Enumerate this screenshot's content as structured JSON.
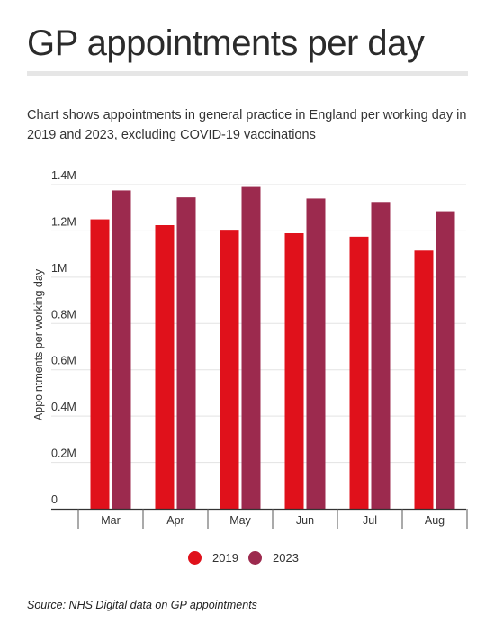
{
  "header": {
    "title": "GP appointments per day",
    "subtitle": "Chart shows appointments in general practice in England per working day in 2019 and 2023, excluding COVID-19 vaccinations"
  },
  "footer": {
    "source": "Source: NHS Digital data on GP appointments"
  },
  "colors": {
    "2019": "#e0111b",
    "2023": "#9c2a4e",
    "grid": "#e3e3e3",
    "axis": "#333333"
  },
  "chart_data": {
    "type": "bar",
    "categories": [
      "Mar",
      "Apr",
      "May",
      "Jun",
      "Jul",
      "Aug"
    ],
    "series": [
      {
        "name": "2019",
        "values": [
          1250000,
          1225000,
          1205000,
          1190000,
          1175000,
          1115000
        ]
      },
      {
        "name": "2023",
        "values": [
          1375000,
          1345000,
          1390000,
          1340000,
          1325000,
          1285000
        ]
      }
    ],
    "ylabel": "Appointments per working day",
    "xlabel": "",
    "ylim": [
      0,
      1400000
    ],
    "yticks": [
      {
        "value": 0,
        "label": "0"
      },
      {
        "value": 200000,
        "label": "0.2M"
      },
      {
        "value": 400000,
        "label": "0.4M"
      },
      {
        "value": 600000,
        "label": "0.6M"
      },
      {
        "value": 800000,
        "label": "0.8M"
      },
      {
        "value": 1000000,
        "label": "1M"
      },
      {
        "value": 1200000,
        "label": "1.2M"
      },
      {
        "value": 1400000,
        "label": "1.4M"
      }
    ],
    "grid": true,
    "legend_position": "bottom-center"
  }
}
